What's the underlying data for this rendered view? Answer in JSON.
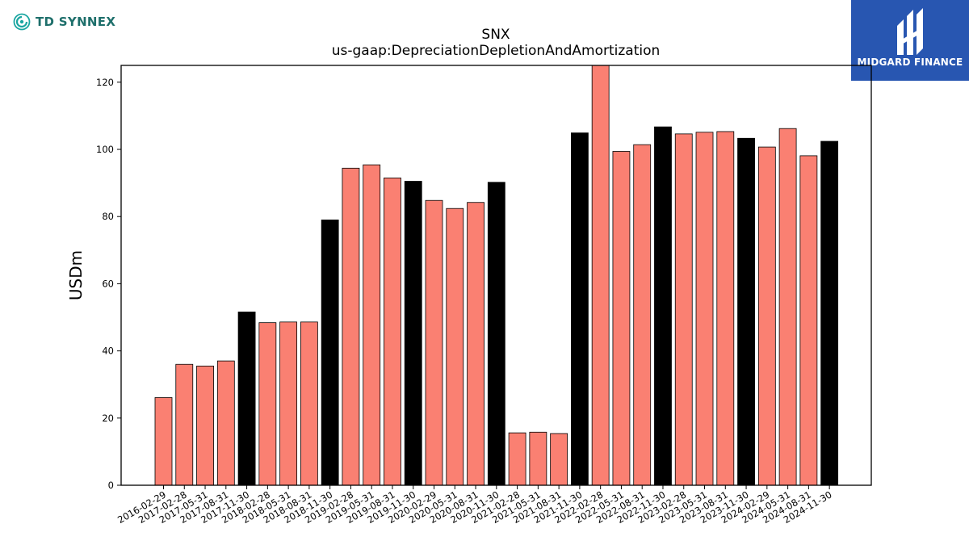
{
  "brand_left": {
    "name": "TD SYNNEX",
    "icon": "td-synnex-logo-icon",
    "color": "#1e6f6b"
  },
  "brand_right": {
    "name": "MIDGARD FINANCE",
    "icon": "midgard-logo-icon",
    "background": "#2856b1"
  },
  "chart_data": {
    "type": "bar",
    "title": "SNX",
    "subtitle": "us-gaap:DepreciationDepletionAndAmortization",
    "xlabel": "",
    "ylabel": "USDm",
    "ylim": [
      0,
      125
    ],
    "yticks": [
      0,
      20,
      40,
      60,
      80,
      100,
      120
    ],
    "grid": false,
    "colors": {
      "quarter": "#fa8072",
      "fiscal_year_end": "#000000",
      "edge": "#000000"
    },
    "categories": [
      "2016-02-29",
      "2017-02-28",
      "2017-05-31",
      "2017-08-31",
      "2017-11-30",
      "2018-02-28",
      "2018-05-31",
      "2018-08-31",
      "2018-11-30",
      "2019-02-28",
      "2019-05-31",
      "2019-08-31",
      "2019-11-30",
      "2020-02-29",
      "2020-05-31",
      "2020-08-31",
      "2020-11-30",
      "2021-02-28",
      "2021-05-31",
      "2021-08-31",
      "2021-11-30",
      "2022-02-28",
      "2022-05-31",
      "2022-08-31",
      "2022-11-30",
      "2023-02-28",
      "2023-05-31",
      "2023-08-31",
      "2023-11-30",
      "2024-02-29",
      "2024-05-31",
      "2024-08-31",
      "2024-11-30"
    ],
    "values": [
      26.1,
      36.0,
      35.5,
      37.0,
      51.6,
      48.4,
      48.6,
      48.6,
      79.0,
      94.4,
      95.4,
      91.5,
      90.5,
      84.8,
      82.4,
      84.2,
      90.2,
      15.6,
      15.8,
      15.4,
      104.9,
      125.2,
      99.4,
      101.4,
      106.7,
      104.6,
      105.1,
      105.3,
      103.3,
      100.7,
      106.2,
      98.1,
      102.4
    ],
    "fiscal_year_end": [
      false,
      false,
      false,
      false,
      true,
      false,
      false,
      false,
      true,
      false,
      false,
      false,
      true,
      false,
      false,
      false,
      true,
      false,
      false,
      false,
      true,
      false,
      false,
      false,
      true,
      false,
      false,
      false,
      true,
      false,
      false,
      false,
      true
    ]
  }
}
